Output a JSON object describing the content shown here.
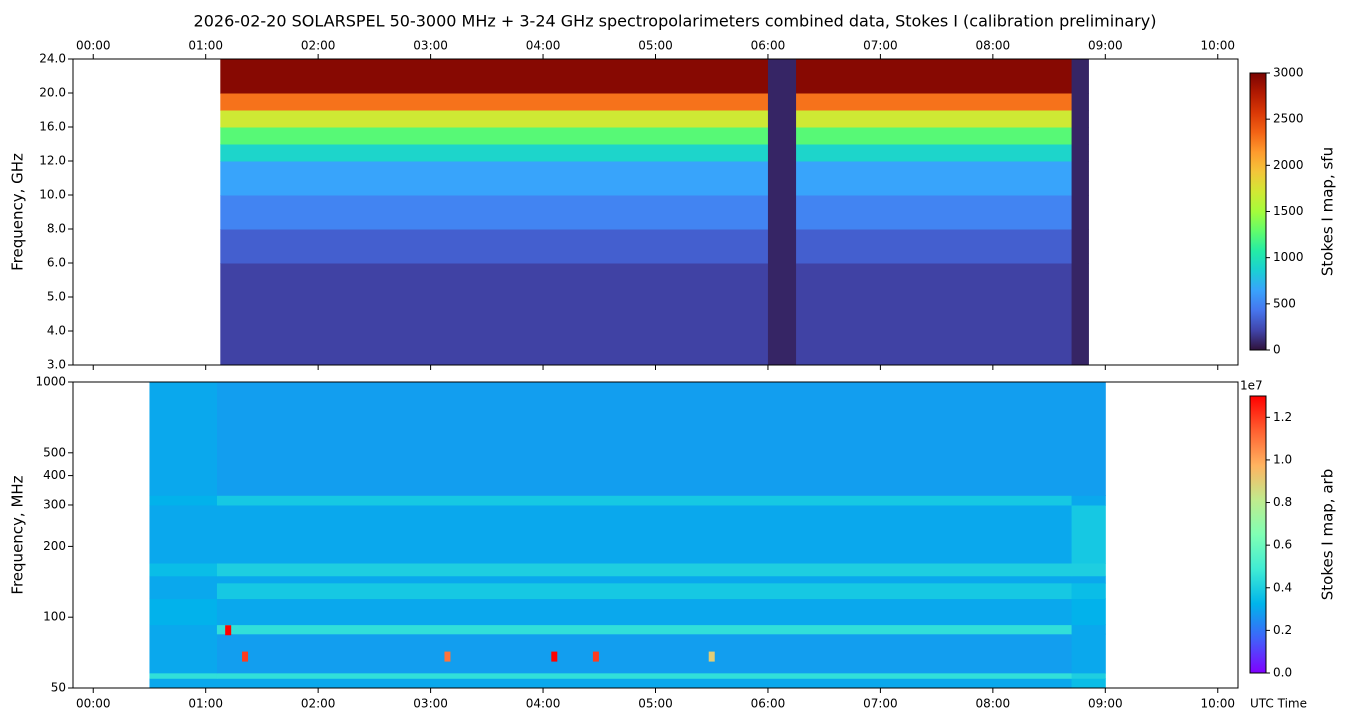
{
  "chart_data": [
    {
      "type": "heatmap",
      "title": "2026-02-20  SOLARSPEL  50-3000 MHz  +  3-24 GHz  spectropolarimeters combined data,  Stokes I  (calibration preliminary)",
      "y_label": "Frequency, GHz",
      "colorbar_label": "Stokes I map, sfu",
      "xlim": [
        -0.18,
        10.18
      ],
      "xticks": [
        {
          "value": 0,
          "label": "00:00"
        },
        {
          "value": 1,
          "label": "01:00"
        },
        {
          "value": 2,
          "label": "02:00"
        },
        {
          "value": 3,
          "label": "03:00"
        },
        {
          "value": 4,
          "label": "04:00"
        },
        {
          "value": 5,
          "label": "05:00"
        },
        {
          "value": 6,
          "label": "06:00"
        },
        {
          "value": 7,
          "label": "07:00"
        },
        {
          "value": 8,
          "label": "08:00"
        },
        {
          "value": 9,
          "label": "09:00"
        },
        {
          "value": 10,
          "label": "10:00"
        }
      ],
      "yscale": "channel",
      "ylim": [
        3,
        24
      ],
      "yticks": [
        {
          "value": 3,
          "label": "3.0"
        },
        {
          "value": 4,
          "label": "4.0"
        },
        {
          "value": 5,
          "label": "5.0"
        },
        {
          "value": 6,
          "label": "6.0"
        },
        {
          "value": 8,
          "label": "8.0"
        },
        {
          "value": 10,
          "label": "10.0"
        },
        {
          "value": 12,
          "label": "12.0"
        },
        {
          "value": 16,
          "label": "16.0"
        },
        {
          "value": 20,
          "label": "20.0"
        },
        {
          "value": 24,
          "label": "24.0"
        }
      ],
      "x_edges": [
        1.13,
        6.0,
        6.25,
        8.7,
        8.85
      ],
      "y_edges": [
        3,
        6,
        8,
        10,
        12,
        14,
        16,
        18,
        20,
        24
      ],
      "z": [
        [
          200,
          80,
          200,
          80
        ],
        [
          330,
          80,
          330,
          80
        ],
        [
          500,
          80,
          500,
          80
        ],
        [
          650,
          80,
          650,
          80
        ],
        [
          900,
          80,
          900,
          80
        ],
        [
          1250,
          80,
          1250,
          80
        ],
        [
          1700,
          80,
          1700,
          80
        ],
        [
          2300,
          80,
          2300,
          80
        ],
        [
          2950,
          80,
          2950,
          80
        ]
      ],
      "clim": [
        0,
        3000
      ],
      "cticks": [
        0,
        500,
        1000,
        1500,
        2000,
        2500,
        3000
      ],
      "colormap": [
        "#30123b",
        "#4145ab",
        "#4675ed",
        "#39a2fc",
        "#1bcfd4",
        "#24eca6",
        "#61fc6c",
        "#a4fc3b",
        "#d1e834",
        "#f3c63a",
        "#fe9b2d",
        "#f36315",
        "#d93806",
        "#b11901",
        "#7a0402"
      ]
    },
    {
      "type": "heatmap",
      "y_label": "Frequency, MHz",
      "x_label": "UTC Time",
      "colorbar_label": "Stokes I map, arb",
      "colorbar_offset": "1e7",
      "xlim": [
        -0.18,
        10.18
      ],
      "xticks": [
        {
          "value": 0,
          "label": "00:00"
        },
        {
          "value": 1,
          "label": "01:00"
        },
        {
          "value": 2,
          "label": "02:00"
        },
        {
          "value": 3,
          "label": "03:00"
        },
        {
          "value": 4,
          "label": "04:00"
        },
        {
          "value": 5,
          "label": "05:00"
        },
        {
          "value": 6,
          "label": "06:00"
        },
        {
          "value": 7,
          "label": "07:00"
        },
        {
          "value": 8,
          "label": "08:00"
        },
        {
          "value": 9,
          "label": "09:00"
        },
        {
          "value": 10,
          "label": "10:00"
        }
      ],
      "yscale": "log",
      "ylim": [
        50,
        1000
      ],
      "yticks": [
        50,
        100,
        200,
        300,
        400,
        500,
        1000
      ],
      "x_edges": [
        0.5,
        1.1,
        8.7,
        9.0
      ],
      "y_edges": [
        50,
        55,
        58,
        85,
        93,
        120,
        140,
        150,
        170,
        300,
        330,
        1000
      ],
      "z": [
        [
          0.3,
          0.3,
          0.35
        ],
        [
          0.45,
          0.45,
          0.4
        ],
        [
          0.3,
          0.28,
          0.3
        ],
        [
          0.3,
          0.45,
          0.3
        ],
        [
          0.32,
          0.3,
          0.32
        ],
        [
          0.3,
          0.38,
          0.35
        ],
        [
          0.3,
          0.3,
          0.3
        ],
        [
          0.35,
          0.4,
          0.4
        ],
        [
          0.3,
          0.3,
          0.38
        ],
        [
          0.32,
          0.38,
          0.3
        ],
        [
          0.3,
          0.28,
          0.28
        ]
      ],
      "spots": {
        "x": [
          1.2,
          1.35,
          4.1,
          4.47,
          5.5,
          3.15
        ],
        "y": [
          88,
          68,
          68,
          68,
          68,
          68
        ],
        "values": [
          1.3,
          1.2,
          1.3,
          1.2,
          0.9,
          1.1
        ]
      },
      "clim": [
        0,
        1.3
      ],
      "cticks": [
        {
          "value": 0,
          "label": "0.0"
        },
        0.2,
        0.4,
        0.6,
        0.8,
        {
          "value": 1,
          "label": "1.0"
        },
        1.2
      ],
      "colormap": [
        "#8000ff",
        "#4062fa",
        "#00b5eb",
        "#40ecd4",
        "#80ffb4",
        "#c0eb8d",
        "#ffb360",
        "#ff6030",
        "#ff0000"
      ]
    }
  ]
}
